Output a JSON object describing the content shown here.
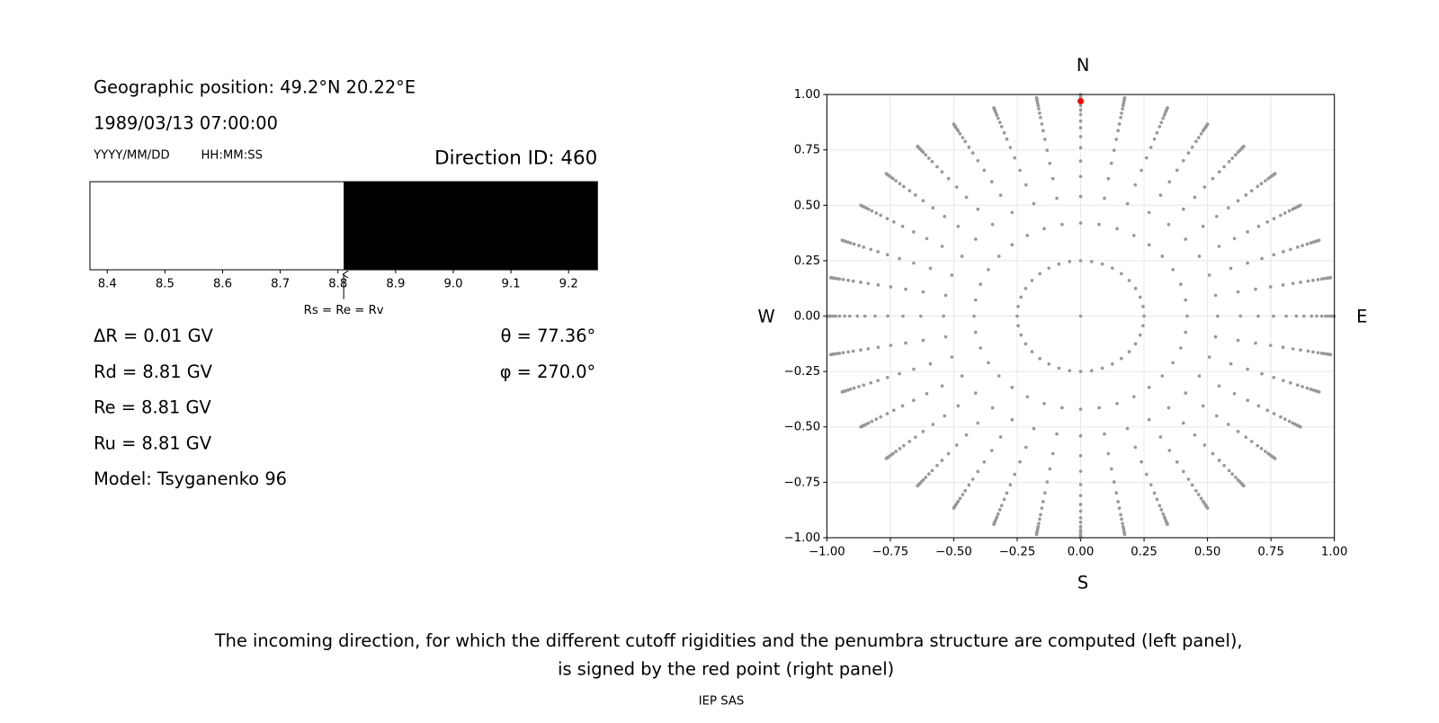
{
  "left_panel": {
    "position": "Geographic position: 49.2°N 20.22°E",
    "datetime": "1989/03/13 07:00:00",
    "date_format": "YYYY/MM/DD",
    "time_format": "HH:MM:SS",
    "direction": "Direction ID: 460",
    "rigidities": [
      "ΔR = 0.01 GV",
      "Rd = 8.81 GV",
      "Re = 8.81 GV",
      "Ru = 8.81 GV",
      "Model: Tsyganenko 96"
    ],
    "angles": [
      "θ = 77.36°",
      "φ = 270.0°"
    ]
  },
  "chart_data": [
    {
      "type": "penumbra",
      "xlim": [
        8.37,
        9.25
      ],
      "xticks": [
        8.4,
        8.5,
        8.6,
        8.7,
        8.8,
        8.9,
        {
          "value": 9,
          "label": "9.0"
        },
        9.1,
        9.2
      ],
      "segments": [
        {
          "start": 8.37,
          "end": 8.81,
          "color": "#ffffff"
        },
        {
          "start": 8.81,
          "end": 9.25,
          "color": "#000000"
        }
      ],
      "marker": {
        "value": 8.81,
        "label": "Rs = Re = Rv"
      }
    },
    {
      "type": "polar-grid",
      "xlim": [
        -1,
        1
      ],
      "ylim": [
        -1,
        1
      ],
      "grid": true,
      "color": "#999999",
      "xticks": [
        {
          "value": -1,
          "label": "−1.00"
        },
        {
          "value": -0.75,
          "label": "−0.75"
        },
        {
          "value": -0.5,
          "label": "−0.50"
        },
        {
          "value": -0.25,
          "label": "−0.25"
        },
        {
          "value": 0,
          "label": "0.00"
        },
        {
          "value": 0.25,
          "label": "0.25"
        },
        {
          "value": 0.5,
          "label": "0.50"
        },
        {
          "value": 0.75,
          "label": "0.75"
        },
        {
          "value": 1,
          "label": "1.00"
        }
      ],
      "yticks": [
        {
          "value": -1,
          "label": "−1.00"
        },
        {
          "value": -0.75,
          "label": "−0.75"
        },
        {
          "value": -0.5,
          "label": "−0.50"
        },
        {
          "value": -0.25,
          "label": "−0.25"
        },
        {
          "value": 0,
          "label": "0.00"
        },
        {
          "value": 0.25,
          "label": "0.25"
        },
        {
          "value": 0.5,
          "label": "0.50"
        },
        {
          "value": 0.75,
          "label": "0.75"
        },
        {
          "value": 1,
          "label": "1.00"
        }
      ],
      "radii": [
        0,
        0.25,
        0.42,
        0.54,
        0.63,
        0.7,
        0.76,
        0.81,
        0.85,
        0.88,
        0.91,
        0.93,
        0.95,
        0.965,
        0.975,
        0.985,
        0.99,
        0.995,
        1.0
      ],
      "angles": [
        0,
        10,
        20,
        30,
        40,
        50,
        60,
        70,
        80,
        90,
        100,
        110,
        120,
        130,
        140,
        150,
        160,
        170,
        180,
        190,
        200,
        210,
        220,
        230,
        240,
        250,
        260,
        270,
        280,
        290,
        300,
        310,
        320,
        330,
        340,
        350
      ],
      "highlight": {
        "x": 0,
        "y": 0.97,
        "color": "#ff0000"
      },
      "compass": {
        "north": "N",
        "south": "S",
        "west": "W",
        "east": "E"
      }
    }
  ],
  "caption": [
    "The incoming direction, for which the different cutoff rigidities and the penumbra structure are computed (left panel),",
    "is signed by the red point (right panel)"
  ],
  "footer": "IEP SAS"
}
